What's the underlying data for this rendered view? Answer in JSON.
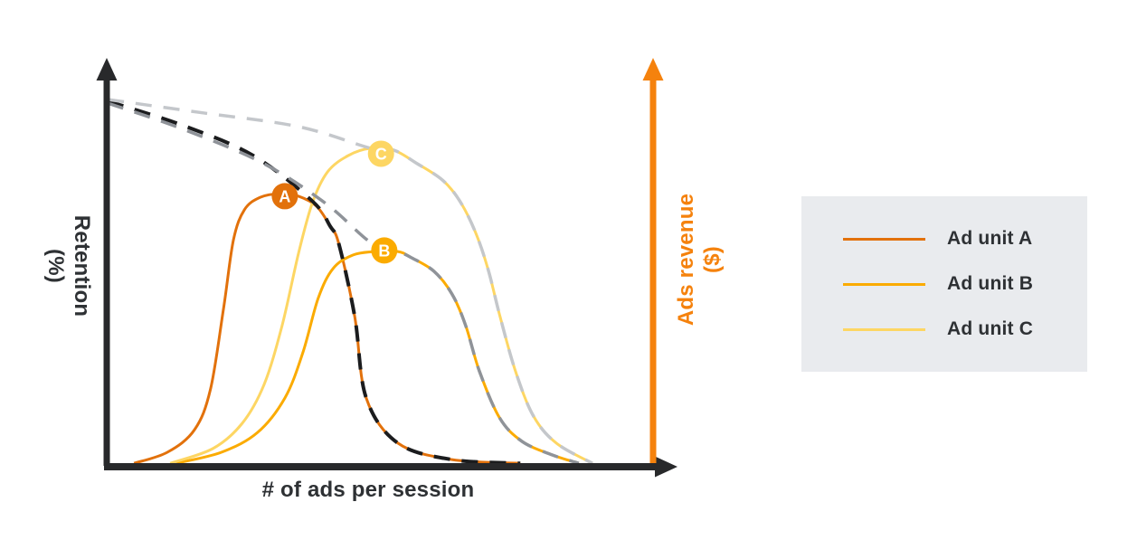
{
  "chart_data": {
    "type": "line",
    "title": "",
    "xlabel": "# of ads per session",
    "ylabel_left": "Retention (%)",
    "ylabel_right": "Ads revenue ($)",
    "axis_notes": "qualitative axes, no tick labels; x in arbitrary ad-count units 0-10, y normalized 0-100",
    "xlim": [
      0,
      10
    ],
    "ylim": [
      0,
      100
    ],
    "grid": false,
    "legend_position": "right",
    "series": [
      {
        "id": "revenue-curve-a",
        "name": "Ad unit A revenue",
        "role": "ads revenue",
        "axis": "right",
        "color": "#e2710b",
        "dash": false,
        "width": 3,
        "x": [
          0.5,
          1.11,
          1.61,
          1.9,
          2.14,
          2.32,
          2.52,
          2.81,
          3.18,
          3.51,
          3.84,
          4.09,
          4.25,
          4.54,
          4.75,
          5.33,
          6.32,
          7.57
        ],
        "y": [
          0.7,
          3.7,
          9.9,
          21.0,
          43.2,
          61.7,
          69.9,
          73.3,
          74.3,
          73.6,
          70.9,
          65.4,
          60.5,
          40.7,
          18.5,
          6.2,
          1.7,
          0.7
        ]
      },
      {
        "id": "revenue-curve-b",
        "name": "Ad unit B revenue",
        "role": "ads revenue",
        "axis": "right",
        "color": "#fbab00",
        "dash": false,
        "width": 3,
        "x": [
          1.27,
          2.1,
          2.76,
          3.26,
          3.59,
          3.87,
          4.14,
          4.5,
          4.92,
          5.33,
          5.58,
          5.99,
          6.32,
          6.57,
          6.82,
          7.19,
          7.6,
          8.15,
          8.64
        ],
        "y": [
          0.7,
          3.7,
          9.1,
          18.5,
          30.9,
          45.7,
          53.8,
          57.5,
          58.5,
          58.5,
          56.8,
          53.1,
          46.9,
          38.3,
          25.9,
          13.1,
          6.7,
          3.0,
          0.7
        ]
      },
      {
        "id": "revenue-curve-c",
        "name": "Ad unit C revenue",
        "role": "ads revenue",
        "axis": "right",
        "color": "#fdd663",
        "dash": false,
        "width": 3,
        "x": [
          1.16,
          1.94,
          2.48,
          2.88,
          3.21,
          3.51,
          3.76,
          4.04,
          4.42,
          4.83,
          5.25,
          5.66,
          6.16,
          6.49,
          6.77,
          6.99,
          7.2,
          7.48,
          7.81,
          8.23,
          8.89
        ],
        "y": [
          0.7,
          4.7,
          11.6,
          22.2,
          38.3,
          58.0,
          71.6,
          80.2,
          84.7,
          86.7,
          86.2,
          82.7,
          77.8,
          71.6,
          63.0,
          53.1,
          40.7,
          25.9,
          13.6,
          6.2,
          0.7
        ]
      },
      {
        "id": "retention-curve-a",
        "name": "Retention with ad unit A",
        "role": "retention",
        "axis": "left",
        "color": "#1b1c1e",
        "dash": true,
        "width": 4,
        "x": [
          0.02,
          1.36,
          2.68,
          3.76,
          4.09,
          4.25,
          4.54,
          4.75,
          5.33,
          6.32,
          7.57
        ],
        "y": [
          99.5,
          93.1,
          84.7,
          72.3,
          65.4,
          60.5,
          40.7,
          18.5,
          6.2,
          1.7,
          0.7
        ]
      },
      {
        "id": "retention-curve-b",
        "name": "Retention with ad unit B",
        "role": "retention",
        "axis": "left",
        "color": "#8f9399",
        "dash": true,
        "width": 3.5,
        "x": [
          0.02,
          1.36,
          2.85,
          4.01,
          4.83,
          5.33,
          5.58,
          5.99,
          6.32,
          6.57,
          6.82,
          7.19,
          7.6,
          8.15,
          8.64
        ],
        "y": [
          99.0,
          92.1,
          82.7,
          71.6,
          61.0,
          58.5,
          56.8,
          53.1,
          46.9,
          38.3,
          25.9,
          13.1,
          6.7,
          3.0,
          0.7
        ]
      },
      {
        "id": "retention-curve-c",
        "name": "Retention with ad unit C",
        "role": "retention",
        "axis": "left",
        "color": "#c4c7cb",
        "dash": true,
        "width": 3.5,
        "x": [
          0.02,
          1.69,
          3.51,
          4.83,
          5.25,
          5.66,
          6.16,
          6.49,
          6.77,
          6.99,
          7.2,
          7.48,
          7.81,
          8.23,
          8.89
        ],
        "y": [
          100.0,
          96.5,
          92.6,
          86.7,
          86.2,
          82.7,
          77.8,
          71.6,
          63.0,
          53.1,
          40.7,
          25.9,
          13.6,
          6.2,
          0.7
        ]
      }
    ],
    "markers": [
      {
        "id": "marker-a",
        "label": "A",
        "x": 3.26,
        "y": 73.6,
        "fill": "#e2710b",
        "text_color": "#ffffff"
      },
      {
        "id": "marker-b",
        "label": "B",
        "x": 5.08,
        "y": 58.8,
        "fill": "#fbab00",
        "text_color": "#ffffff"
      },
      {
        "id": "marker-c",
        "label": "C",
        "x": 5.02,
        "y": 85.2,
        "fill": "#fdd663",
        "text_color": "#ffffff"
      }
    ]
  },
  "axes": {
    "x_label": "# of ads per session",
    "y_left": {
      "line1": "Retention",
      "line2": "(%)"
    },
    "y_right": {
      "line1": "Ads revenue",
      "line2": "($)"
    }
  },
  "legend": {
    "items": [
      {
        "label": "Ad unit A",
        "color": "#e2710b"
      },
      {
        "label": "Ad unit B",
        "color": "#fbab00"
      },
      {
        "label": "Ad unit C",
        "color": "#fdd663"
      }
    ]
  },
  "colors": {
    "axis_black": "#28292b",
    "axis_orange": "#f5820d",
    "text_dark": "#2e3134",
    "legend_background": "#e9ebee"
  }
}
